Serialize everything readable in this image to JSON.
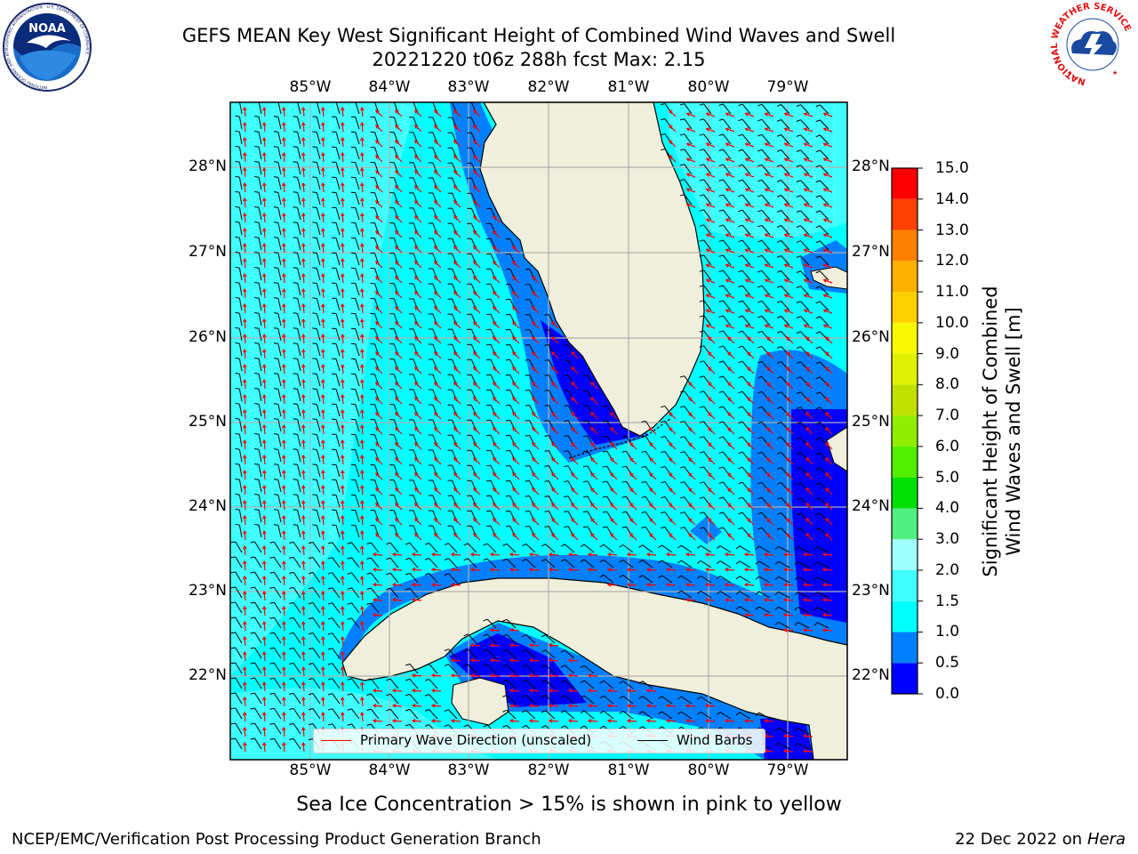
{
  "header": {
    "title_line1": "GEFS MEAN Key West Significant Height of Combined Wind Waves and Swell",
    "title_line2": "20221220 t06z 288h fcst   Max: 2.15"
  },
  "logos": {
    "noaa_text": "NOAA",
    "noaa_ring": "NATIONAL OCEANIC AND ATMOSPHERIC ADMINISTRATION · U.S. DEPARTMENT OF COMMERCE",
    "nws_ring": "NATIONAL WEATHER SERVICE"
  },
  "map": {
    "lon_labels": [
      "85°W",
      "84°W",
      "83°W",
      "82°W",
      "81°W",
      "80°W",
      "79°W"
    ],
    "lat_labels": [
      "28°N",
      "27°N",
      "26°N",
      "25°N",
      "24°N",
      "23°N",
      "22°N"
    ],
    "colors": {
      "land": "#efefdc",
      "coast": "#000000",
      "grid": "#b0b0b0",
      "wave_arrow": "#ff0000",
      "barb": "#000000"
    }
  },
  "legend": {
    "wave_label": "Primary Wave Direction (unscaled)",
    "barb_label": "Wind Barbs"
  },
  "colorbar": {
    "title_line1": "Significant Height of Combined",
    "title_line2": "Wind Waves and Swell [m]",
    "levels": [
      "0.0",
      "0.5",
      "1.0",
      "1.5",
      "2.0",
      "3.0",
      "4.0",
      "5.0",
      "6.0",
      "7.0",
      "8.0",
      "9.0",
      "10.0",
      "11.0",
      "12.0",
      "13.0",
      "14.0",
      "15.0"
    ],
    "colors": [
      "#0000ff",
      "#0080ff",
      "#00ffff",
      "#40ffff",
      "#a0ffff",
      "#50f080",
      "#00e000",
      "#50ee00",
      "#90ee00",
      "#c0e000",
      "#e0f000",
      "#f8f800",
      "#ffd000",
      "#ffb000",
      "#ff8000",
      "#ff4000",
      "#ff0000"
    ]
  },
  "footer": {
    "caption": "Sea Ice Concentration > 15% is shown in pink to yellow",
    "left": "NCEP/EMC/Verification Post Processing Product Generation Branch",
    "date": "22 Dec 2022 on",
    "host": "Hera"
  }
}
